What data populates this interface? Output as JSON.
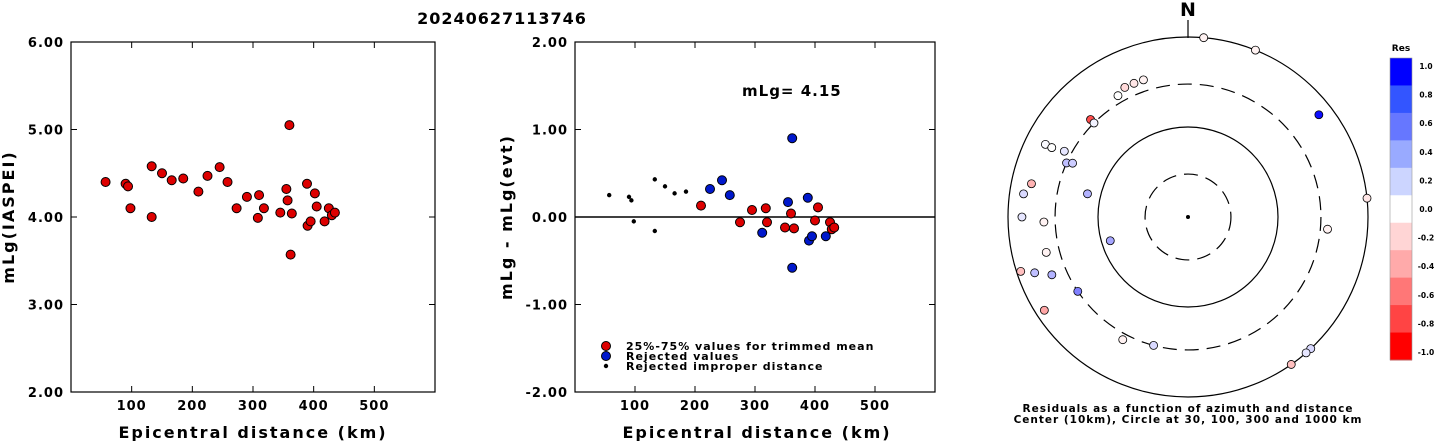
{
  "title": "20240627113746",
  "chart_data": [
    {
      "type": "scatter",
      "xlabel": "Epicentral distance (km)",
      "ylabel": "mLg(IASPEI)",
      "xlim": [
        0,
        600
      ],
      "ylim": [
        2.0,
        6.0
      ],
      "xticks": [
        "100",
        "200",
        "300",
        "400",
        "500"
      ],
      "yticks": [
        "2.00",
        "3.00",
        "4.00",
        "5.00",
        "6.00"
      ],
      "grid": false,
      "series": [
        {
          "color": "#dd0000",
          "points": [
            [
              57,
              4.4
            ],
            [
              90,
              4.38
            ],
            [
              94,
              4.35
            ],
            [
              98,
              4.1
            ],
            [
              133,
              4.58
            ],
            [
              133,
              4.0
            ],
            [
              150,
              4.5
            ],
            [
              166,
              4.42
            ],
            [
              185,
              4.44
            ],
            [
              210,
              4.29
            ],
            [
              225,
              4.47
            ],
            [
              245,
              4.57
            ],
            [
              258,
              4.4
            ],
            [
              273,
              4.1
            ],
            [
              290,
              4.23
            ],
            [
              308,
              3.99
            ],
            [
              310,
              4.25
            ],
            [
              318,
              4.1
            ],
            [
              345,
              4.05
            ],
            [
              355,
              4.32
            ],
            [
              357,
              4.19
            ],
            [
              360,
              5.05
            ],
            [
              362,
              3.57
            ],
            [
              364,
              4.04
            ],
            [
              389,
              4.38
            ],
            [
              390,
              3.9
            ],
            [
              395,
              3.95
            ],
            [
              402,
              4.27
            ],
            [
              405,
              4.12
            ],
            [
              418,
              3.95
            ],
            [
              425,
              4.1
            ],
            [
              430,
              4.02
            ],
            [
              435,
              4.05
            ]
          ]
        }
      ]
    },
    {
      "type": "scatter",
      "xlabel": "Epicentral distance (km)",
      "ylabel": "mLg - mLg(evt)",
      "xlim": [
        0,
        600
      ],
      "ylim": [
        -2.0,
        2.0
      ],
      "xticks": [
        "100",
        "200",
        "300",
        "400",
        "500"
      ],
      "yticks": [
        "-2.00",
        "-1.00",
        "0.00",
        "1.00",
        "2.00"
      ],
      "annotation": "mLg= 4.15",
      "hline": 0,
      "series": [
        {
          "name": "25%-75% values for trimmed mean",
          "color": "#dd0000",
          "points": [
            [
              210,
              0.13
            ],
            [
              275,
              -0.06
            ],
            [
              295,
              0.08
            ],
            [
              318,
              0.1
            ],
            [
              320,
              -0.06
            ],
            [
              350,
              -0.12
            ],
            [
              360,
              0.04
            ],
            [
              365,
              -0.13
            ],
            [
              400,
              -0.04
            ],
            [
              405,
              0.11
            ],
            [
              425,
              -0.06
            ],
            [
              428,
              -0.14
            ],
            [
              432,
              -0.12
            ]
          ]
        },
        {
          "name": "Rejected values",
          "color": "#0018cc",
          "points": [
            [
              225,
              0.32
            ],
            [
              245,
              0.42
            ],
            [
              258,
              0.25
            ],
            [
              312,
              -0.18
            ],
            [
              355,
              0.17
            ],
            [
              362,
              0.9
            ],
            [
              362,
              -0.58
            ],
            [
              388,
              0.22
            ],
            [
              390,
              -0.27
            ],
            [
              395,
              -0.22
            ],
            [
              418,
              -0.22
            ]
          ]
        },
        {
          "name": "Rejected improper distance",
          "color": "#000000",
          "marker": "dot",
          "points": [
            [
              57,
              0.25
            ],
            [
              90,
              0.23
            ],
            [
              94,
              0.19
            ],
            [
              98,
              -0.05
            ],
            [
              133,
              0.43
            ],
            [
              133,
              -0.16
            ],
            [
              150,
              0.35
            ],
            [
              166,
              0.27
            ],
            [
              185,
              0.29
            ]
          ]
        }
      ]
    },
    {
      "type": "polar-scatter",
      "north_label": "N",
      "caption_line1": "Residuals as a function of azimuth and distance",
      "caption_line2": "Center (10km), Circle at 30, 100, 300 and 1000 km",
      "rings_km": [
        30,
        100,
        300,
        1000
      ],
      "colorbar": {
        "title": "Res",
        "labels": [
          "1.0",
          "0.8",
          "0.6",
          "0.4",
          "0.2",
          "0.0",
          "-0.2",
          "-0.4",
          "-0.6",
          "-0.8",
          "-1.0"
        ],
        "colors": [
          "#0000ff",
          "#3355ff",
          "#6677ff",
          "#99aaff",
          "#ccd5ff",
          "#ffffff",
          "#ffd5d5",
          "#ffaaaa",
          "#ff7777",
          "#ff4444",
          "#ff0000"
        ]
      },
      "stations": [
        {
          "az": 5,
          "dist": 1000,
          "res": -0.05
        },
        {
          "az": 22,
          "dist": 1000,
          "res": -0.05
        },
        {
          "az": 52,
          "dist": 700,
          "res": 0.95
        },
        {
          "az": 338,
          "dist": 400,
          "res": -0.1
        },
        {
          "az": 342,
          "dist": 400,
          "res": -0.05
        },
        {
          "az": 334,
          "dist": 400,
          "res": -0.15
        },
        {
          "az": 330,
          "dist": 360,
          "res": 0.0
        },
        {
          "az": 315,
          "dist": 340,
          "res": -0.7
        },
        {
          "az": 315,
          "dist": 300,
          "res": 0.05
        },
        {
          "az": 297,
          "dist": 600,
          "res": 0.02
        },
        {
          "az": 297,
          "dist": 500,
          "res": 0.0
        },
        {
          "az": 298,
          "dist": 360,
          "res": 0.1
        },
        {
          "az": 294,
          "dist": 300,
          "res": 0.25
        },
        {
          "az": 295,
          "dist": 260,
          "res": 0.2
        },
        {
          "az": 283,
          "dist": 140,
          "res": 0.3
        },
        {
          "az": 282,
          "dist": 600,
          "res": -0.3
        },
        {
          "az": 278,
          "dist": 700,
          "res": 0.15
        },
        {
          "az": 270,
          "dist": 700,
          "res": 0.1
        },
        {
          "az": 268,
          "dist": 400,
          "res": -0.05
        },
        {
          "az": 252,
          "dist": 900,
          "res": -0.25
        },
        {
          "az": 256,
          "dist": 420,
          "res": -0.05
        },
        {
          "az": 250,
          "dist": 650,
          "res": 0.25
        },
        {
          "az": 247,
          "dist": 440,
          "res": 0.3
        },
        {
          "az": 237,
          "dist": 800,
          "res": -0.35
        },
        {
          "az": 236,
          "dist": 300,
          "res": 0.5
        },
        {
          "az": 253,
          "dist": 80,
          "res": 0.35
        },
        {
          "az": 208,
          "dist": 350,
          "res": -0.05
        },
        {
          "az": 195,
          "dist": 300,
          "res": 0.15
        },
        {
          "az": 95,
          "dist": 360,
          "res": -0.05
        },
        {
          "az": 84,
          "dist": 1000,
          "res": -0.1
        },
        {
          "az": 137,
          "dist": 1000,
          "res": 0.15
        },
        {
          "az": 139,
          "dist": 1000,
          "res": 0.1
        },
        {
          "az": 145,
          "dist": 1000,
          "res": -0.25
        }
      ]
    }
  ]
}
